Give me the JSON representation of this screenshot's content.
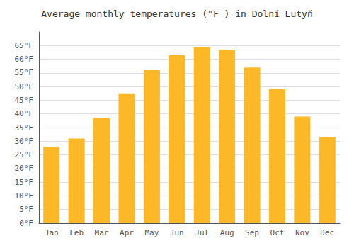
{
  "chart_data": {
    "type": "bar",
    "title": "Average monthly temperatures (°F ) in Dolní Lutyň",
    "categories": [
      "Jan",
      "Feb",
      "Mar",
      "Apr",
      "May",
      "Jun",
      "Jul",
      "Aug",
      "Sep",
      "Oct",
      "Nov",
      "Dec"
    ],
    "values": [
      28.0,
      31.0,
      38.5,
      47.5,
      56.0,
      61.5,
      64.5,
      63.5,
      57.0,
      49.0,
      39.0,
      31.5
    ],
    "color": "#FDB827",
    "ylim": [
      0,
      70
    ],
    "yticks": [
      {
        "value": 0,
        "label": "0°F"
      },
      {
        "value": 5,
        "label": "5°F"
      },
      {
        "value": 10,
        "label": "10°F"
      },
      {
        "value": 15,
        "label": "15°F"
      },
      {
        "value": 20,
        "label": "20°F"
      },
      {
        "value": 25,
        "label": "25°F"
      },
      {
        "value": 30,
        "label": "30°F"
      },
      {
        "value": 35,
        "label": "35°F"
      },
      {
        "value": 40,
        "label": "40°F"
      },
      {
        "value": 45,
        "label": "45°F"
      },
      {
        "value": 50,
        "label": "50°F"
      },
      {
        "value": 55,
        "label": "55°F"
      },
      {
        "value": 60,
        "label": "60°F"
      },
      {
        "value": 65,
        "label": "65°F"
      }
    ],
    "grid": true
  }
}
